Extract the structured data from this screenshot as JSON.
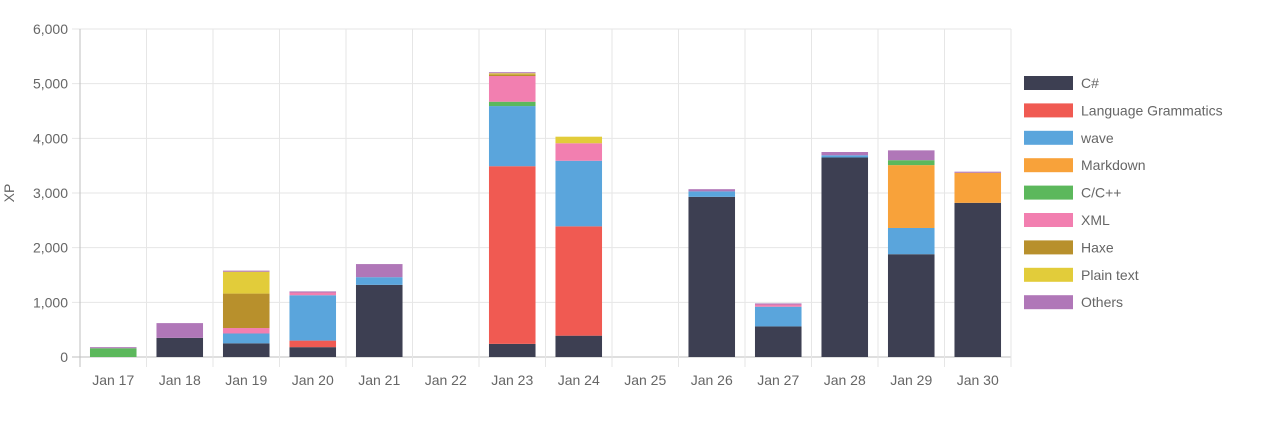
{
  "chart_data": {
    "type": "bar",
    "stacked": true,
    "ylabel": "XP",
    "xlabel": "",
    "title": "",
    "ylim": [
      0,
      6000
    ],
    "yticks": [
      "0",
      "1,000",
      "2,000",
      "3,000",
      "4,000",
      "5,000",
      "6,000"
    ],
    "grid": true,
    "legend_position": "right",
    "categories": [
      "Jan 17",
      "Jan 18",
      "Jan 19",
      "Jan 20",
      "Jan 21",
      "Jan 22",
      "Jan 23",
      "Jan 24",
      "Jan 25",
      "Jan 26",
      "Jan 27",
      "Jan 28",
      "Jan 29",
      "Jan 30"
    ],
    "series": [
      {
        "name": "C#",
        "color": "#3d3f52",
        "values": [
          0,
          350,
          250,
          180,
          1320,
          0,
          240,
          390,
          0,
          2930,
          560,
          3650,
          1880,
          2820
        ]
      },
      {
        "name": "Language Grammatics",
        "color": "#f05a52",
        "values": [
          0,
          0,
          0,
          120,
          0,
          0,
          3250,
          2000,
          0,
          0,
          0,
          0,
          0,
          0
        ]
      },
      {
        "name": "wave",
        "color": "#5aa5dc",
        "values": [
          0,
          0,
          180,
          830,
          140,
          0,
          1100,
          1200,
          0,
          100,
          360,
          40,
          480,
          0
        ]
      },
      {
        "name": "Markdown",
        "color": "#f8a23a",
        "values": [
          0,
          0,
          0,
          0,
          0,
          0,
          0,
          0,
          0,
          0,
          0,
          0,
          1150,
          550
        ]
      },
      {
        "name": "C/C++",
        "color": "#5cb85c",
        "values": [
          160,
          0,
          0,
          0,
          0,
          0,
          80,
          0,
          0,
          0,
          0,
          0,
          90,
          0
        ]
      },
      {
        "name": "XML",
        "color": "#f27fb0",
        "values": [
          0,
          0,
          100,
          50,
          0,
          0,
          470,
          320,
          0,
          0,
          40,
          0,
          0,
          0
        ]
      },
      {
        "name": "Haxe",
        "color": "#b8902c",
        "values": [
          0,
          0,
          630,
          0,
          0,
          0,
          30,
          0,
          0,
          0,
          0,
          0,
          0,
          0
        ]
      },
      {
        "name": "Plain text",
        "color": "#e2cc3a",
        "values": [
          0,
          0,
          400,
          0,
          0,
          0,
          20,
          120,
          0,
          0,
          0,
          0,
          0,
          0
        ]
      },
      {
        "name": "Others",
        "color": "#b077b8",
        "values": [
          20,
          270,
          20,
          20,
          240,
          0,
          20,
          0,
          0,
          40,
          20,
          60,
          180,
          20
        ]
      }
    ]
  }
}
